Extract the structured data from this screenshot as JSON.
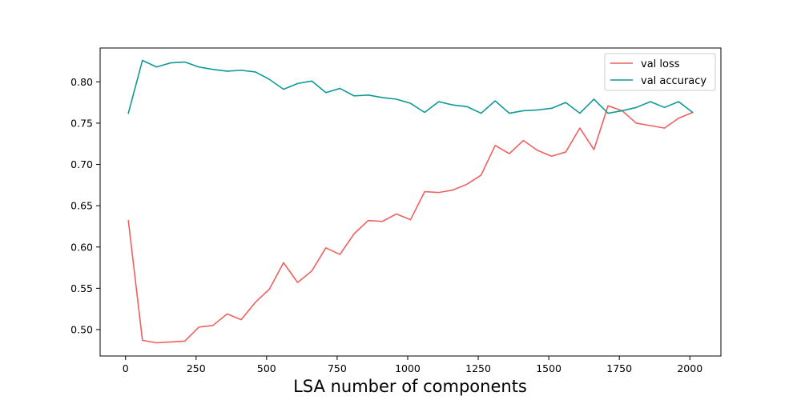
{
  "chart_data": {
    "type": "line",
    "title": "",
    "xlabel": "LSA number of components",
    "ylabel": "",
    "xlim": [
      -90,
      2110
    ],
    "ylim": [
      0.468,
      0.841
    ],
    "x_ticks": [
      0,
      250,
      500,
      750,
      1000,
      1250,
      1500,
      1750,
      2000
    ],
    "y_ticks": [
      0.5,
      0.55,
      0.6,
      0.65,
      0.7,
      0.75,
      0.8
    ],
    "x_tick_labels": [
      "0",
      "250",
      "500",
      "750",
      "1000",
      "1250",
      "1500",
      "1750",
      "2000"
    ],
    "y_tick_labels": [
      "0.50",
      "0.55",
      "0.60",
      "0.65",
      "0.70",
      "0.75",
      "0.80"
    ],
    "grid": false,
    "legend_position": "top-right",
    "x": [
      10,
      60,
      110,
      160,
      210,
      260,
      310,
      360,
      410,
      460,
      510,
      560,
      610,
      660,
      710,
      760,
      810,
      860,
      910,
      960,
      1010,
      1060,
      1110,
      1160,
      1210,
      1260,
      1310,
      1360,
      1410,
      1460,
      1510,
      1560,
      1610,
      1660,
      1710,
      1760,
      1810,
      1860,
      1910,
      1960,
      2010
    ],
    "series": [
      {
        "name": "val loss",
        "color": "#f0605d",
        "values": [
          0.632,
          0.487,
          0.484,
          0.485,
          0.486,
          0.503,
          0.505,
          0.519,
          0.512,
          0.533,
          0.549,
          0.581,
          0.557,
          0.571,
          0.599,
          0.591,
          0.616,
          0.632,
          0.631,
          0.64,
          0.633,
          0.667,
          0.666,
          0.669,
          0.676,
          0.687,
          0.723,
          0.713,
          0.729,
          0.717,
          0.71,
          0.715,
          0.744,
          0.718,
          0.771,
          0.765,
          0.75,
          0.747,
          0.744,
          0.756,
          0.763
        ]
      },
      {
        "name": "val accuracy",
        "color": "#0f9996",
        "values": [
          0.762,
          0.826,
          0.818,
          0.823,
          0.824,
          0.818,
          0.815,
          0.813,
          0.814,
          0.812,
          0.803,
          0.791,
          0.798,
          0.801,
          0.787,
          0.792,
          0.783,
          0.784,
          0.781,
          0.779,
          0.774,
          0.763,
          0.776,
          0.772,
          0.77,
          0.762,
          0.777,
          0.762,
          0.765,
          0.766,
          0.768,
          0.775,
          0.762,
          0.779,
          0.762,
          0.765,
          0.769,
          0.776,
          0.769,
          0.776,
          0.763
        ]
      }
    ]
  }
}
